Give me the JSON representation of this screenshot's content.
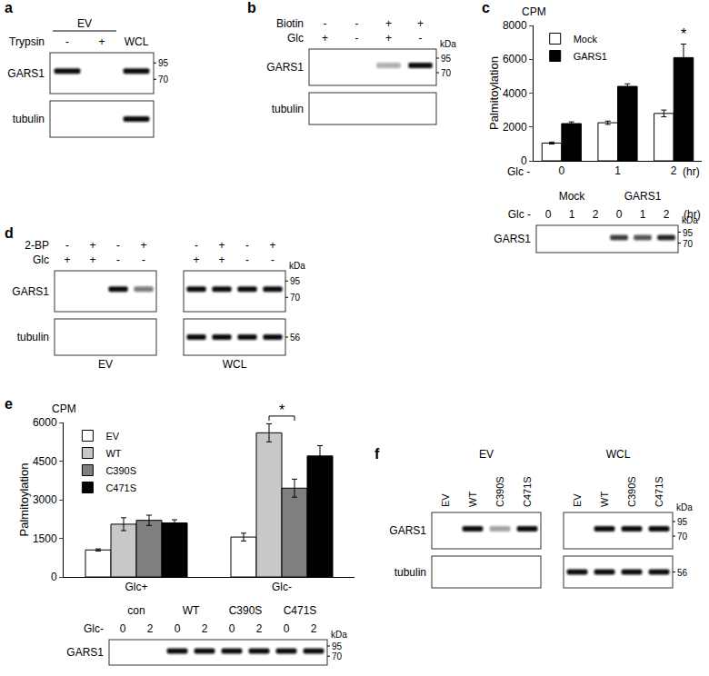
{
  "panels": [
    {
      "label": "a",
      "groups": [
        {
          "text": "EV",
          "lanes": [
            0,
            1
          ]
        }
      ],
      "header_rows": [
        {
          "name": "Trypsin",
          "cells": [
            "-",
            "+",
            "WCL"
          ]
        }
      ],
      "blots": [
        {
          "name": "GARS1",
          "bands": [
            1,
            0,
            1
          ],
          "markers": [
            95,
            70
          ]
        },
        {
          "name": "tubulin",
          "bands": [
            0,
            0,
            1
          ]
        }
      ]
    },
    {
      "label": "b",
      "header_rows": [
        {
          "name": "Biotin",
          "cells": [
            "-",
            "-",
            "+",
            "+"
          ]
        },
        {
          "name": "Glc",
          "cells": [
            "+",
            "-",
            "+",
            "-"
          ]
        }
      ],
      "unit": "kDa",
      "blots": [
        {
          "name": "GARS1",
          "bands": [
            0,
            0,
            0.35,
            1
          ],
          "markers": [
            95,
            70
          ]
        },
        {
          "name": "tubulin",
          "bands": [
            0,
            0,
            0,
            0
          ]
        }
      ]
    },
    {
      "label": "d",
      "header_rows": [
        {
          "name": "2-BP",
          "cells": [
            "-",
            "+",
            "-",
            "+",
            "-",
            "+",
            "-",
            "+"
          ]
        },
        {
          "name": "Glc",
          "cells": [
            "+",
            "+",
            "-",
            "-",
            "+",
            "+",
            "-",
            "-"
          ]
        }
      ],
      "unit": "kDa",
      "blots": [
        {
          "name": "GARS1",
          "bands": [
            0,
            0,
            1,
            0.55,
            1,
            1,
            1,
            1
          ],
          "markers": [
            95,
            70
          ]
        },
        {
          "name": "tubulin",
          "bands": [
            0,
            0,
            0,
            0,
            1,
            1,
            1,
            1
          ],
          "markers": [
            56
          ]
        }
      ],
      "groups": [
        {
          "text": "EV",
          "lanes": [
            0,
            3
          ]
        },
        {
          "text": "WCL",
          "lanes": [
            4,
            7
          ]
        }
      ]
    },
    {
      "label": "f",
      "groups": [
        {
          "text": "EV",
          "lanes": [
            0,
            3
          ]
        },
        {
          "text": "WCL",
          "lanes": [
            4,
            7
          ]
        }
      ],
      "header_rows": [
        {
          "cells": [
            "EV",
            "WT",
            "C390S",
            "C471S",
            "EV",
            "WT",
            "C390S",
            "C471S"
          ]
        }
      ],
      "unit": "kDa",
      "blots": [
        {
          "name": "GARS1",
          "bands": [
            0,
            1,
            0.4,
            1,
            0,
            1,
            1,
            1
          ],
          "markers": [
            95,
            70
          ]
        },
        {
          "name": "tubulin",
          "bands": [
            0,
            0,
            0,
            0,
            1,
            1,
            1,
            1
          ],
          "markers": [
            56
          ]
        }
      ]
    }
  ],
  "chart_data": [
    {
      "label": "c",
      "type": "bar",
      "ylabel": "Palmitoylation",
      "yunit": "CPM",
      "xlabel": "Glc -",
      "xunit": "(hr)",
      "categories": [
        "0",
        "1",
        "2"
      ],
      "series": [
        {
          "name": "Mock",
          "color": "#ffffff",
          "values": [
            1050,
            2250,
            2800
          ],
          "error": [
            60,
            100,
            200
          ]
        },
        {
          "name": "GARS1",
          "color": "#000000",
          "values": [
            2200,
            4400,
            6100
          ],
          "error": [
            100,
            150,
            800
          ]
        }
      ],
      "ylim": [
        0,
        8000
      ],
      "yticks": [
        0,
        2000,
        4000,
        6000,
        8000
      ],
      "grid": false,
      "legend": "top left",
      "annotations": [
        {
          "text": "*",
          "category": "2",
          "series": "GARS1"
        }
      ],
      "blot": {
        "groups": [
          {
            "text": "Mock",
            "lanes": [
              0,
              2
            ]
          },
          {
            "text": "GARS1",
            "lanes": [
              3,
              5
            ]
          }
        ],
        "header_rows": [
          {
            "name": "Glc -",
            "cells": [
              "0",
              "1",
              "2",
              "0",
              "1",
              "2"
            ],
            "suffix": "(hr)"
          }
        ],
        "unit": "kDa",
        "blots": [
          {
            "name": "GARS1",
            "bands": [
              0,
              0,
              0,
              0.8,
              0.7,
              0.9
            ],
            "markers": [
              95,
              70
            ]
          }
        ]
      }
    },
    {
      "label": "e",
      "type": "bar",
      "ylabel": "Palmitoylation",
      "yunit": "CPM",
      "categories": [
        "Glc+",
        "Glc-"
      ],
      "series": [
        {
          "name": "EV",
          "color": "#ffffff",
          "values": [
            1050,
            1550
          ],
          "error": [
            40,
            150
          ]
        },
        {
          "name": "WT",
          "color": "#c8c8c8",
          "values": [
            2050,
            5600
          ],
          "error": [
            250,
            350
          ]
        },
        {
          "name": "C390S",
          "color": "#7f7f7f",
          "values": [
            2200,
            3450
          ],
          "error": [
            200,
            350
          ]
        },
        {
          "name": "C471S",
          "color": "#000000",
          "values": [
            2100,
            4700
          ],
          "error": [
            120,
            400
          ]
        }
      ],
      "ylim": [
        0,
        6000
      ],
      "yticks": [
        0,
        1500,
        3000,
        4500,
        6000
      ],
      "grid": false,
      "legend": "top left",
      "annotations": [
        {
          "text": "*",
          "category": "Glc-",
          "between": [
            "WT",
            "C390S"
          ]
        }
      ],
      "blot": {
        "groups": [
          {
            "text": "con",
            "lanes": [
              0,
              1
            ]
          },
          {
            "text": "WT",
            "lanes": [
              2,
              3
            ]
          },
          {
            "text": "C390S",
            "lanes": [
              4,
              5
            ]
          },
          {
            "text": "C471S",
            "lanes": [
              6,
              7
            ]
          }
        ],
        "header_rows": [
          {
            "name": "Glc-",
            "cells": [
              "0",
              "2",
              "0",
              "2",
              "0",
              "2",
              "0",
              "2"
            ]
          }
        ],
        "unit": "kDa",
        "blots": [
          {
            "name": "GARS1",
            "bands": [
              0,
              0,
              1,
              1,
              1,
              1,
              1,
              1
            ],
            "markers": [
              95,
              70
            ]
          }
        ]
      }
    }
  ]
}
